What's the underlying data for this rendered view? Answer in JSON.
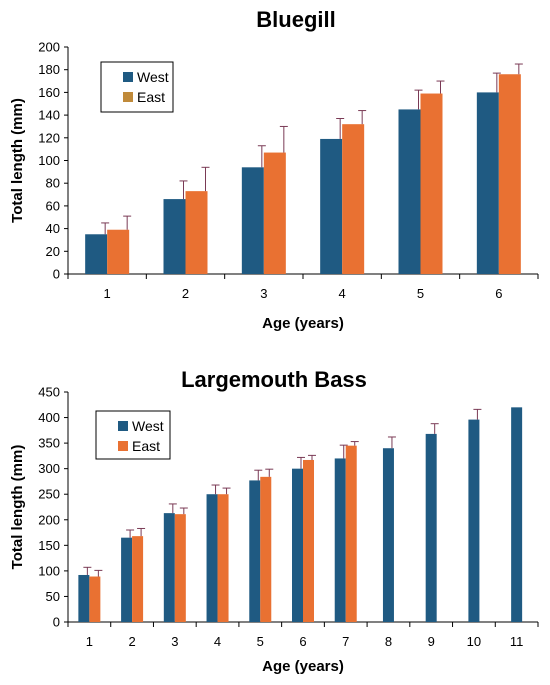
{
  "colors": {
    "west": "#1f5a82",
    "east": "#e97132",
    "east_legend_bluegill": "#c08a3a",
    "error": "#b03060",
    "axis": "#000000"
  },
  "chart_data": [
    {
      "type": "bar",
      "title": "Bluegill",
      "xlabel": "Age (years)",
      "ylabel": "Total length (mm)",
      "categories": [
        "1",
        "2",
        "3",
        "4",
        "5",
        "6"
      ],
      "ylim": [
        0,
        200
      ],
      "yticks": [
        0,
        20,
        40,
        60,
        80,
        100,
        120,
        140,
        160,
        180,
        200
      ],
      "legend_position": "top-left",
      "series": [
        {
          "name": "West",
          "values": [
            35,
            66,
            94,
            119,
            145,
            160
          ],
          "errors": [
            10,
            16,
            19,
            18,
            17,
            17
          ]
        },
        {
          "name": "East",
          "values": [
            39,
            73,
            107,
            132,
            159,
            176
          ],
          "errors": [
            12,
            21,
            23,
            12,
            11,
            9
          ]
        }
      ]
    },
    {
      "type": "bar",
      "title": "Largemouth Bass",
      "xlabel": "Age (years)",
      "ylabel": "Total length (mm)",
      "categories": [
        "1",
        "2",
        "3",
        "4",
        "5",
        "6",
        "7",
        "8",
        "9",
        "10",
        "11"
      ],
      "ylim": [
        0,
        450
      ],
      "yticks": [
        0,
        50,
        100,
        150,
        200,
        250,
        300,
        350,
        400,
        450
      ],
      "legend_position": "top-left",
      "series": [
        {
          "name": "West",
          "values": [
            92,
            165,
            213,
            250,
            277,
            300,
            320,
            340,
            368,
            396,
            420
          ],
          "errors": [
            15,
            15,
            18,
            18,
            20,
            22,
            26,
            22,
            20,
            20,
            0
          ]
        },
        {
          "name": "East",
          "values": [
            89,
            168,
            211,
            250,
            284,
            317,
            345,
            null,
            null,
            null,
            null
          ],
          "errors": [
            12,
            15,
            12,
            12,
            15,
            9,
            8,
            null,
            null,
            null,
            null
          ]
        }
      ]
    }
  ]
}
